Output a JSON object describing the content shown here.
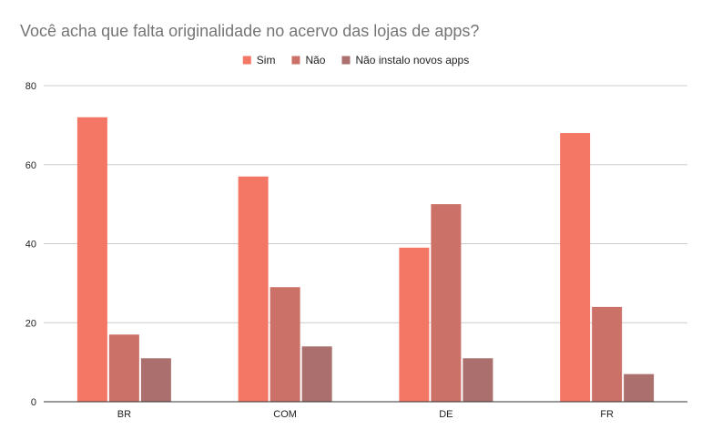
{
  "chart_data": {
    "type": "bar",
    "title": "Você acha que falta originalidade no acervo das lojas de apps?",
    "categories": [
      "BR",
      "COM",
      "DE",
      "FR"
    ],
    "series": [
      {
        "name": "Sim",
        "color": "#f47766",
        "values": [
          72,
          57,
          39,
          68
        ]
      },
      {
        "name": "Não",
        "color": "#cc7167",
        "values": [
          17,
          29,
          50,
          24
        ]
      },
      {
        "name": "Não instalo novos apps",
        "color": "#ab6f6d",
        "values": [
          11,
          14,
          11,
          7
        ]
      }
    ],
    "yticks": [
      "0",
      "20",
      "40",
      "60",
      "80"
    ],
    "ylim": [
      0,
      80
    ],
    "xlabel": "",
    "ylabel": "",
    "legend_position": "top-center",
    "grid": true
  }
}
